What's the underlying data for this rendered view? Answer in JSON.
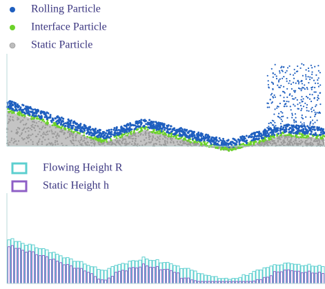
{
  "particle_legend": [
    "Rolling Particle",
    "Interface Particle",
    "Static Particle"
  ],
  "height_legend": [
    "Flowing Height R",
    "Static Height h"
  ]
}
